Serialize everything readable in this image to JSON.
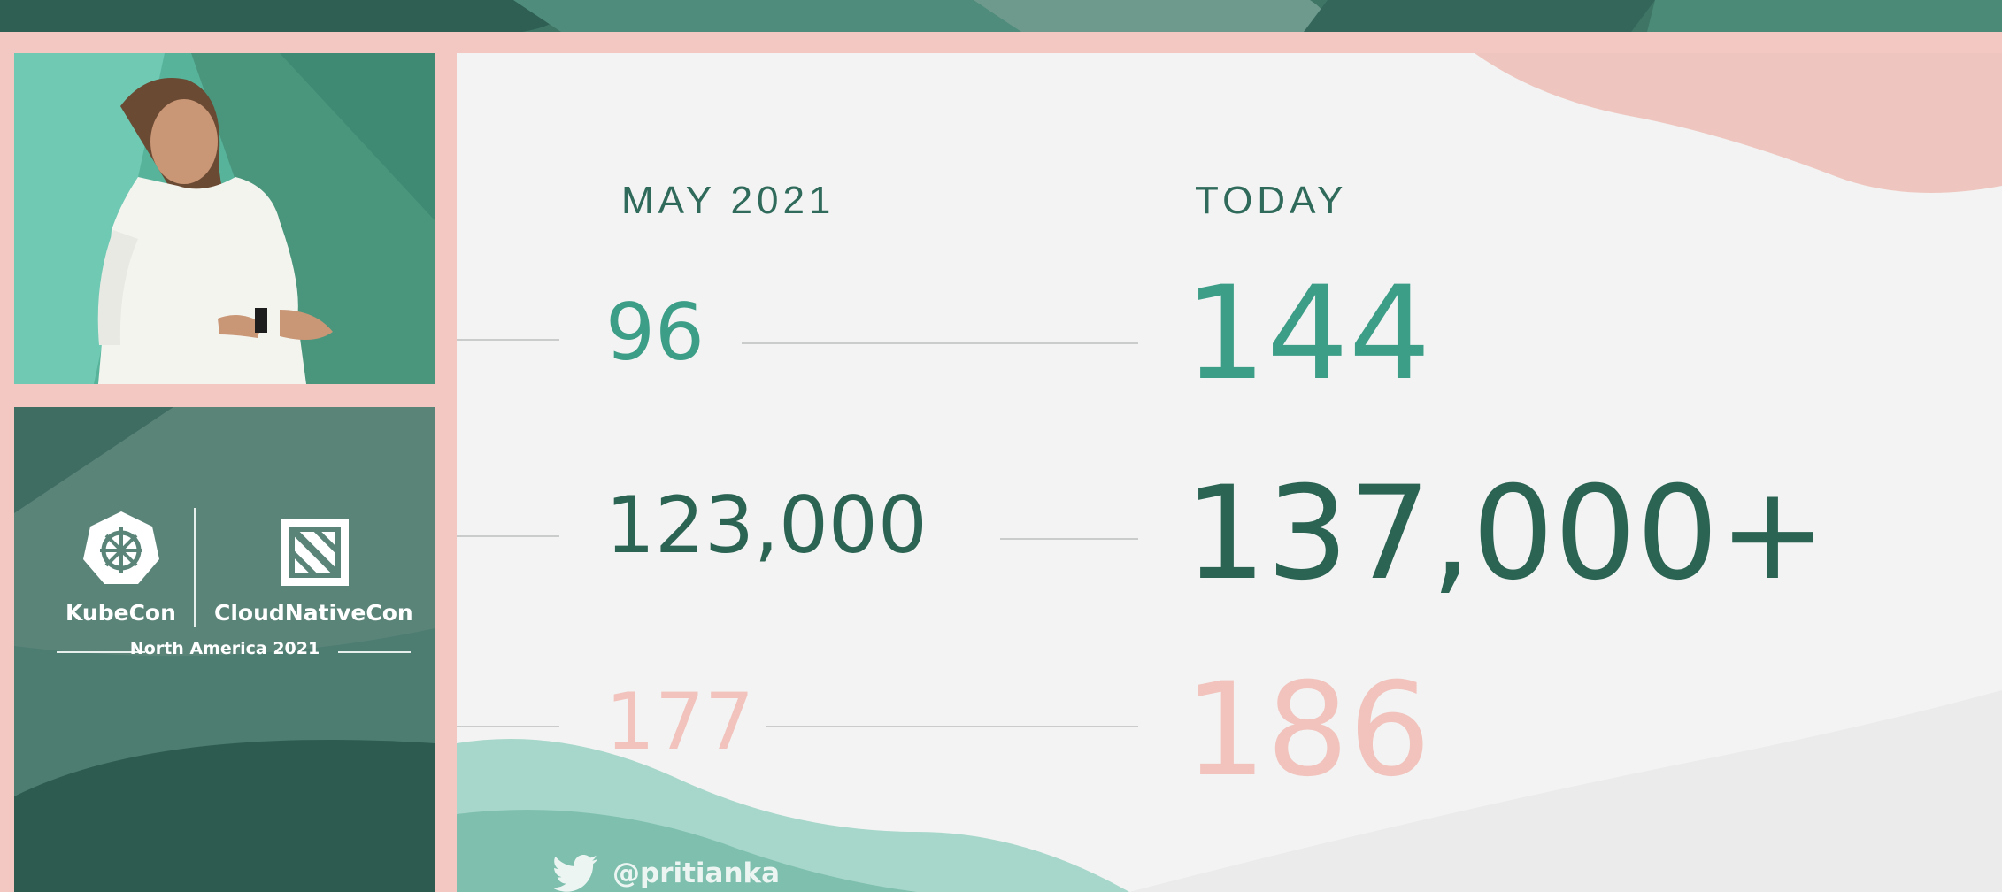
{
  "event": {
    "kubecon_label": "KubeCon",
    "cloudnativecon_label": "CloudNativeCon",
    "edition": "North America 2021"
  },
  "slide": {
    "columns": {
      "past_heading": "MAY 2021",
      "current_heading": "TODAY"
    },
    "rows": [
      {
        "past": "96",
        "current": "144"
      },
      {
        "past": "123,000",
        "current": "137,000+"
      },
      {
        "past": "177",
        "current": "186"
      }
    ],
    "twitter_handle": "@pritianka"
  },
  "icons": {
    "kubecon_logo": "kubernetes-helm-icon",
    "cncf_logo": "cncf-icon",
    "twitter": "twitter-bird-icon"
  },
  "colors": {
    "teal": "#3d9e88",
    "dark_green": "#2c6454",
    "pink": "#f2c2bc",
    "slide_bg": "#f2f3f2"
  }
}
